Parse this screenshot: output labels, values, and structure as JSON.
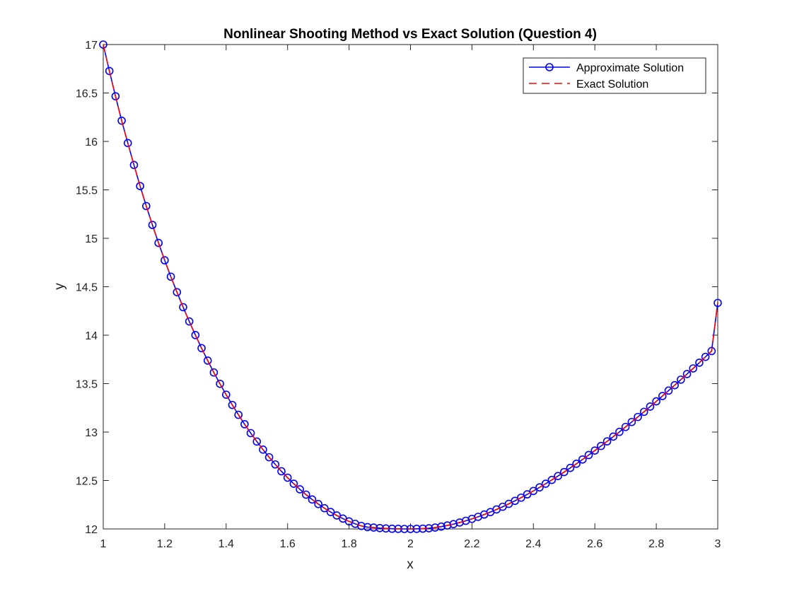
{
  "chart_data": {
    "type": "line",
    "title": "Nonlinear Shooting Method vs Exact Solution (Question 4)",
    "xlabel": "x",
    "ylabel": "y",
    "xlim": [
      1,
      3
    ],
    "ylim": [
      12,
      17
    ],
    "x_ticks": [
      "1",
      "1.2",
      "1.4",
      "1.6",
      "1.8",
      "2",
      "2.2",
      "2.4",
      "2.6",
      "2.8",
      "3"
    ],
    "y_ticks": [
      "12",
      "12.5",
      "13",
      "13.5",
      "14",
      "14.5",
      "15",
      "15.5",
      "16",
      "16.5",
      "17"
    ],
    "grid": false,
    "legend_position": "top-right",
    "x": [
      1.0,
      1.02,
      1.04,
      1.06,
      1.08,
      1.1,
      1.12,
      1.14,
      1.16,
      1.18,
      1.2,
      1.22,
      1.24,
      1.26,
      1.28,
      1.3,
      1.32,
      1.34,
      1.36,
      1.38,
      1.4,
      1.42,
      1.44,
      1.46,
      1.48,
      1.5,
      1.52,
      1.54,
      1.56,
      1.58,
      1.6,
      1.62,
      1.64,
      1.66,
      1.68,
      1.7,
      1.72,
      1.74,
      1.76,
      1.78,
      1.8,
      1.82,
      1.84,
      1.86,
      1.88,
      1.9,
      1.92,
      1.94,
      1.96,
      1.98,
      2.0,
      2.02,
      2.04,
      2.06,
      2.08,
      2.1,
      2.12,
      2.14,
      2.16,
      2.18,
      2.2,
      2.22,
      2.24,
      2.26,
      2.28,
      2.3,
      2.32,
      2.34,
      2.36,
      2.38,
      2.4,
      2.42,
      2.44,
      2.46,
      2.48,
      2.5,
      2.52,
      2.54,
      2.56,
      2.58,
      2.6,
      2.62,
      2.64,
      2.66,
      2.68,
      2.7,
      2.72,
      2.74,
      2.76,
      2.78,
      2.8,
      2.82,
      2.84,
      2.86,
      2.88,
      2.9,
      2.92,
      2.94,
      2.96,
      2.98,
      3.0
    ],
    "series": [
      {
        "name": "Approximate Solution",
        "color": "#0000ff",
        "style": "solid",
        "marker": "circle",
        "values": [
          17.0,
          16.727,
          16.466,
          16.214,
          15.983,
          15.757,
          15.539,
          15.333,
          15.138,
          14.952,
          14.773,
          14.604,
          14.444,
          14.289,
          14.142,
          14.001,
          13.866,
          13.738,
          13.615,
          13.498,
          13.386,
          13.28,
          13.178,
          13.081,
          12.989,
          12.902,
          12.819,
          12.74,
          12.666,
          12.595,
          12.529,
          12.467,
          12.409,
          12.354,
          12.304,
          12.257,
          12.214,
          12.175,
          12.139,
          12.107,
          12.078,
          12.053,
          12.031,
          12.019,
          12.014,
          12.009,
          12.005,
          12.002,
          12.001,
          12.0,
          12.0,
          12.001,
          12.003,
          12.007,
          12.014,
          12.024,
          12.036,
          12.05,
          12.066,
          12.084,
          12.104,
          12.125,
          12.149,
          12.174,
          12.201,
          12.229,
          12.259,
          12.29,
          12.323,
          12.357,
          12.392,
          12.429,
          12.467,
          12.506,
          12.546,
          12.587,
          12.63,
          12.673,
          12.717,
          12.763,
          12.809,
          12.856,
          12.904,
          12.953,
          13.002,
          13.053,
          13.104,
          13.156,
          13.209,
          13.263,
          13.317,
          13.372,
          13.428,
          13.484,
          13.541,
          13.599,
          13.657,
          13.716,
          13.776,
          13.836,
          14.333
        ]
      },
      {
        "name": "Exact Solution",
        "color": "#ff0000",
        "style": "dashed",
        "marker": "none",
        "values": [
          17.0,
          16.727,
          16.466,
          16.214,
          15.983,
          15.757,
          15.539,
          15.333,
          15.138,
          14.952,
          14.773,
          14.604,
          14.444,
          14.289,
          14.142,
          14.001,
          13.866,
          13.738,
          13.615,
          13.498,
          13.386,
          13.28,
          13.178,
          13.081,
          12.989,
          12.902,
          12.819,
          12.74,
          12.666,
          12.595,
          12.529,
          12.467,
          12.409,
          12.354,
          12.304,
          12.257,
          12.214,
          12.175,
          12.139,
          12.107,
          12.078,
          12.053,
          12.031,
          12.019,
          12.014,
          12.009,
          12.005,
          12.002,
          12.001,
          12.0,
          12.0,
          12.001,
          12.003,
          12.007,
          12.014,
          12.024,
          12.036,
          12.05,
          12.066,
          12.084,
          12.104,
          12.125,
          12.149,
          12.174,
          12.201,
          12.229,
          12.259,
          12.29,
          12.323,
          12.357,
          12.392,
          12.429,
          12.467,
          12.506,
          12.546,
          12.587,
          12.63,
          12.673,
          12.717,
          12.763,
          12.809,
          12.856,
          12.904,
          12.953,
          13.002,
          13.053,
          13.104,
          13.156,
          13.209,
          13.263,
          13.317,
          13.372,
          13.428,
          13.484,
          13.541,
          13.599,
          13.657,
          13.716,
          13.776,
          13.836,
          14.333
        ]
      }
    ]
  }
}
